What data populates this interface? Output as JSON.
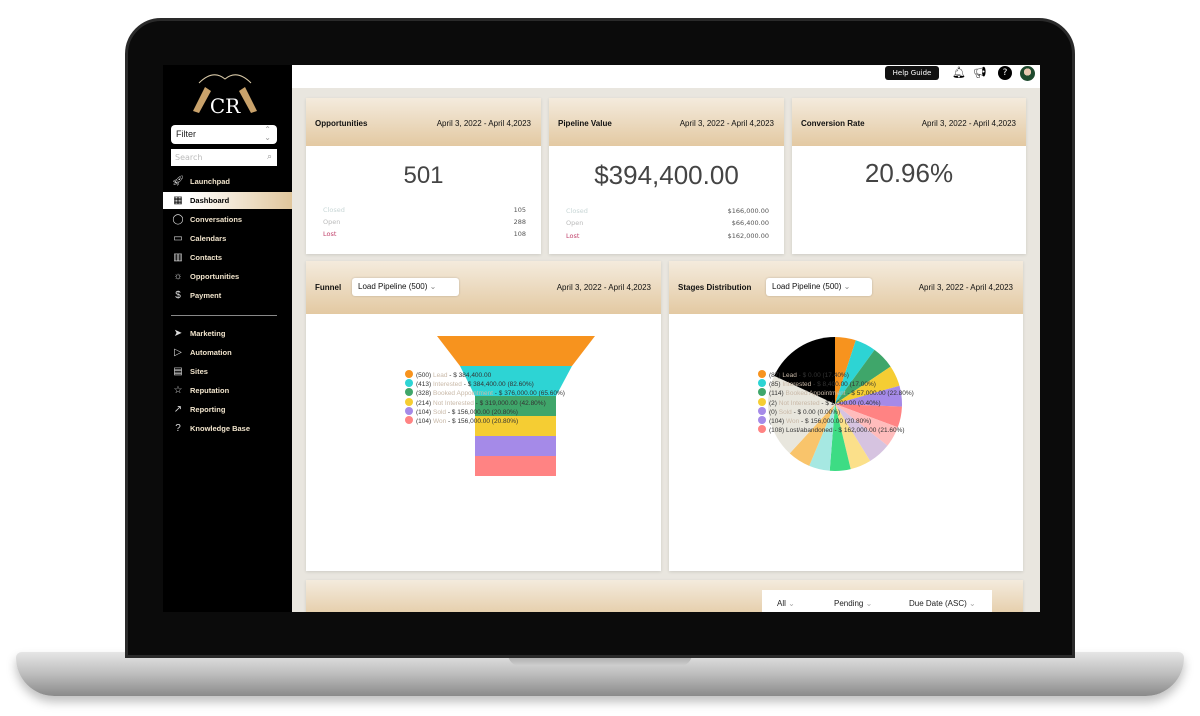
{
  "logo_text": "CR",
  "sidebar": {
    "filter": "Filter",
    "search_placeholder": "Search",
    "items": [
      {
        "label": "Launchpad",
        "icon": "rocket-icon"
      },
      {
        "label": "Dashboard",
        "icon": "dashboard-icon",
        "active": true
      },
      {
        "label": "Conversations",
        "icon": "chat-icon"
      },
      {
        "label": "Calendars",
        "icon": "calendar-icon"
      },
      {
        "label": "Contacts",
        "icon": "contacts-icon"
      },
      {
        "label": "Opportunities",
        "icon": "lightbulb-icon"
      },
      {
        "label": "Payment",
        "icon": "payment-icon"
      },
      {
        "label": "Marketing",
        "icon": "send-icon"
      },
      {
        "label": "Automation",
        "icon": "play-icon"
      },
      {
        "label": "Sites",
        "icon": "browser-icon"
      },
      {
        "label": "Reputation",
        "icon": "star-icon"
      },
      {
        "label": "Reporting",
        "icon": "trend-icon"
      },
      {
        "label": "Knowledge Base",
        "icon": "question-icon"
      }
    ]
  },
  "topbar": {
    "help": "Help Guide"
  },
  "cards": {
    "opportunities": {
      "title": "Opportunities",
      "date": "April 3, 2022 - April 4,2023",
      "value": "501",
      "rows": [
        {
          "label": "Closed",
          "value": "105"
        },
        {
          "label": "Open",
          "value": "288"
        },
        {
          "label": "Lost",
          "value": "108"
        }
      ]
    },
    "pipeline": {
      "title": "Pipeline Value",
      "date": "April 3, 2022 - April 4,2023",
      "value": "$394,400.00",
      "rows": [
        {
          "label": "Closed",
          "value": "$166,000.00"
        },
        {
          "label": "Open",
          "value": "$66,400.00"
        },
        {
          "label": "Lost",
          "value": "$162,000.00"
        }
      ]
    },
    "conversion": {
      "title": "Conversion Rate",
      "date": "April 3, 2022 - April 4,2023",
      "value": "20.96%"
    }
  },
  "funnel": {
    "title": "Funnel",
    "select": "Load Pipeline (500)",
    "date": "April 3, 2022 - April 4,2023",
    "legend": [
      {
        "count": "(500)",
        "name": "Lead",
        "rest": " - $ 384,400.00",
        "color": "#f7931e"
      },
      {
        "count": "(413)",
        "name": "Interested",
        "rest": " - $ 384,400.00 (82.60%)",
        "color": "#2dd4d4"
      },
      {
        "count": "(328)",
        "name": "Booked Appointment",
        "rest": " - $ 376,000.00 (65.60%)",
        "color": "#3fa66a"
      },
      {
        "count": "(214)",
        "name": "Not Interested",
        "rest": " - $ 319,000.00 (42.80%)",
        "color": "#f5cd33"
      },
      {
        "count": "(104)",
        "name": "Sold",
        "rest": " - $ 156,000.00 (20.80%)",
        "color": "#a58ae8"
      },
      {
        "count": "(104)",
        "name": "Won",
        "rest": " - $ 156,000.00 (20.80%)",
        "color": "#ff8383"
      }
    ]
  },
  "stages": {
    "title": "Stages Distribution",
    "select": "Load Pipeline (500)",
    "date": "April 3, 2022 - April 4,2023",
    "legend": [
      {
        "count": "(87)",
        "name": "Lead",
        "rest": " - $ 0.00 (17.40%)",
        "color": "#f7931e"
      },
      {
        "count": "(85)",
        "name": "Interested",
        "rest": " - $ 8,400.00 (17.00%)",
        "color": "#2dd4d4"
      },
      {
        "count": "(114)",
        "name": "Booked Appointment",
        "rest": " - $ 57,000.00 (22.80%)",
        "color": "#3fa66a"
      },
      {
        "count": "(2)",
        "name": "Not Interested",
        "rest": " - $ 1,000.00 (0.40%)",
        "color": "#f5cd33"
      },
      {
        "count": "(0)",
        "name": "Sold",
        "rest": " - $ 0.00 (0.00%)",
        "color": "#a58ae8"
      },
      {
        "count": "(104)",
        "name": "Won",
        "rest": " - $ 156,000.00 (20.80%)",
        "color": "#a58ae8"
      },
      {
        "count": "(108)",
        "name": "Lost/abandoned",
        "rest": " - $ 162,000.00 (21.60%)",
        "color": "#ff8383",
        "dark": true
      }
    ]
  },
  "tasks": {
    "filters": [
      "All",
      "Pending",
      "Due Date (ASC)"
    ]
  },
  "chart_data": [
    {
      "type": "funnel",
      "categories": [
        "Lead",
        "Interested",
        "Booked Appointment",
        "Not Interested",
        "Sold",
        "Won"
      ],
      "values": [
        500,
        413,
        328,
        214,
        104,
        104
      ],
      "colors": [
        "#f7931e",
        "#2dd4d4",
        "#3fa66a",
        "#f5cd33",
        "#a58ae8",
        "#ff8383"
      ]
    },
    {
      "type": "pie",
      "slices": [
        {
          "value": 5,
          "color": "#f7931e"
        },
        {
          "value": 5,
          "color": "#2dd4d4"
        },
        {
          "value": 5.5,
          "color": "#3fa66a"
        },
        {
          "value": 5,
          "color": "#f5cd33"
        },
        {
          "value": 5,
          "color": "#a58ae8"
        },
        {
          "value": 5,
          "color": "#ff8383"
        },
        {
          "value": 5,
          "color": "#ffbcbc"
        },
        {
          "value": 5.5,
          "color": "#d6c3e0"
        },
        {
          "value": 5,
          "color": "#fbe08a"
        },
        {
          "value": 5,
          "color": "#3ddc84"
        },
        {
          "value": 5,
          "color": "#a6e8e2"
        },
        {
          "value": 5.5,
          "color": "#f9c46b"
        },
        {
          "value": 20,
          "color": "#e8e6dd"
        },
        {
          "value": 18,
          "color": "#000000"
        }
      ]
    }
  ]
}
